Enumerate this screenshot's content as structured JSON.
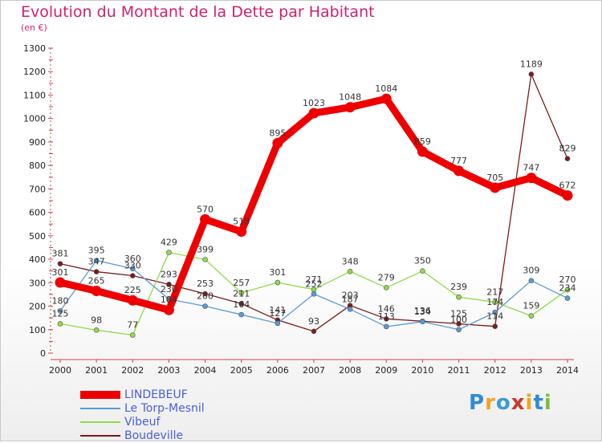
{
  "title": "Evolution du Montant de la Dette par Habitant",
  "subtitle": "(en €)",
  "logo": {
    "text": "Proxiti",
    "colors": [
      "#2e8bd8",
      "#f2a51c",
      "#3c9ad8",
      "#c63a2e",
      "#f2a51c",
      "#2e8bd8",
      "#7bbf3a"
    ]
  },
  "chart_data": {
    "type": "line",
    "x": [
      "2000",
      "2001",
      "2002",
      "2003",
      "2004",
      "2005",
      "2006",
      "2007",
      "2008",
      "2009",
      "2010",
      "2011",
      "2012",
      "2013",
      "2014"
    ],
    "ylim": [
      0,
      1300
    ],
    "yticks": [
      0,
      100,
      200,
      300,
      400,
      500,
      600,
      700,
      800,
      900,
      1000,
      1100,
      1200,
      1300
    ],
    "legend_position": "bottom-left",
    "grid": false,
    "series": [
      {
        "name": "LINDEBEUF",
        "color": "#ee0000",
        "values": [
          301,
          265,
          225,
          184,
          570,
          518,
          895,
          1023,
          1048,
          1084,
          859,
          777,
          705,
          747,
          672
        ],
        "labels": [
          "301",
          "265",
          "225",
          "184",
          "570",
          "518",
          "895",
          "1023",
          "1048",
          "1084",
          "859",
          "777",
          "705",
          "747",
          "672"
        ]
      },
      {
        "name": "Le Torp-Mesnil",
        "color": "#5a9bd5",
        "values": [
          180,
          395,
          360,
          230,
          200,
          164,
          127,
          252,
          187,
          113,
          134,
          100,
          174,
          309,
          234
        ],
        "labels": [
          "180",
          "395",
          "360",
          "230",
          "200",
          "164",
          "127",
          "252",
          "187",
          "113",
          "134",
          "100",
          "174",
          "309",
          "234"
        ]
      },
      {
        "name": "Vibeuf",
        "color": "#8edb4a",
        "values": [
          125,
          98,
          77,
          429,
          399,
          257,
          301,
          271,
          348,
          279,
          350,
          239,
          217,
          159,
          270
        ],
        "labels": [
          "125",
          "98",
          "77",
          "429",
          "399",
          "257",
          "301",
          "271",
          "348",
          "279",
          "350",
          "239",
          "217",
          "159",
          "270"
        ]
      },
      {
        "name": "Boudeville",
        "color": "#7a1c1c",
        "values": [
          381,
          347,
          330,
          293,
          253,
          211,
          141,
          93,
          203,
          146,
          136,
          125,
          114,
          1189,
          829
        ],
        "labels": [
          "381",
          "347",
          "330",
          "293",
          "253",
          "211",
          "141",
          "93",
          "203",
          "146",
          "136",
          "125",
          "114",
          "1189",
          "829"
        ]
      }
    ]
  }
}
